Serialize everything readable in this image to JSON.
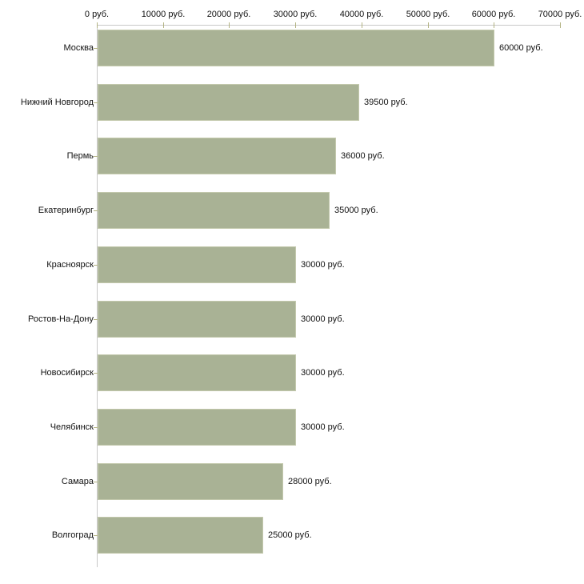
{
  "chart_data": {
    "type": "bar",
    "orientation": "horizontal",
    "title": "",
    "categories": [
      "Москва",
      "Нижний Новгород",
      "Пермь",
      "Екатеринбург",
      "Красноярск",
      "Ростов-На-Дону",
      "Новосибирск",
      "Челябинск",
      "Самара",
      "Волгоград"
    ],
    "values": [
      60000,
      39500,
      36000,
      35000,
      30000,
      30000,
      30000,
      30000,
      28000,
      25000
    ],
    "value_labels": [
      "60000 руб.",
      "39500 руб.",
      "36000 руб.",
      "35000 руб.",
      "30000 руб.",
      "30000 руб.",
      "30000 руб.",
      "30000 руб.",
      "28000 руб.",
      "25000 руб."
    ],
    "x_axis": {
      "position": "top",
      "min": 0,
      "max": 70000,
      "ticks": [
        0,
        10000,
        20000,
        30000,
        40000,
        50000,
        60000,
        70000
      ],
      "tick_labels": [
        "0 руб.",
        "10000 руб.",
        "20000 руб.",
        "30000 руб.",
        "40000 руб.",
        "50000 руб.",
        "60000 руб.",
        "70000 руб."
      ],
      "unit": "руб."
    },
    "ylabel": "",
    "xlabel": "",
    "grid": false,
    "legend": false,
    "colors": {
      "bar_fill": "#a9b295",
      "bar_border": "#c3c9ad",
      "axis_line": "#c8c8c8",
      "tick_mark": "#b3b383",
      "text": "#111111",
      "background": "#ffffff"
    }
  }
}
